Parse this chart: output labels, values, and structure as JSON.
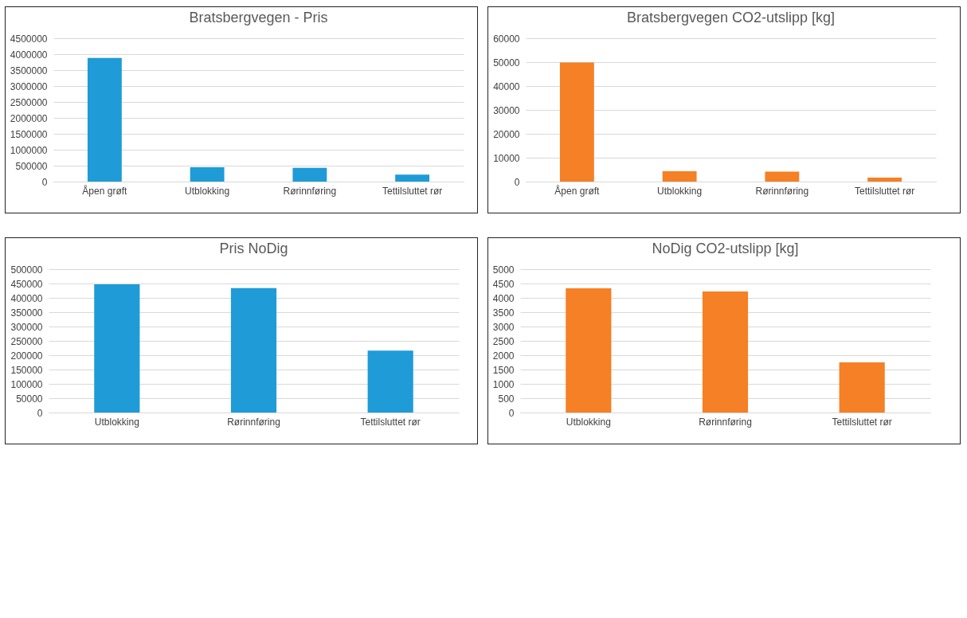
{
  "chart_data": [
    {
      "type": "bar",
      "title": "Bratsbergvegen - Pris",
      "categories": [
        "Åpen grøft",
        "Utblokking",
        "Rørinnføring",
        "Tettilsluttet rør"
      ],
      "values": [
        3880000,
        450000,
        430000,
        220000
      ],
      "color": "#1f9bd7",
      "ylim": [
        0,
        4500000
      ],
      "yticks": [
        0,
        500000,
        1000000,
        1500000,
        2000000,
        2500000,
        3000000,
        3500000,
        4000000,
        4500000
      ],
      "grid": "y"
    },
    {
      "type": "bar",
      "title": "Bratsbergvegen CO2-utslipp [kg]",
      "categories": [
        "Åpen grøft",
        "Utblokking",
        "Rørinnføring",
        "Tettilsluttet rør"
      ],
      "values": [
        49800,
        4300,
        4200,
        1700
      ],
      "color": "#f58025",
      "ylim": [
        0,
        60000
      ],
      "yticks": [
        0,
        10000,
        20000,
        30000,
        40000,
        50000,
        60000
      ],
      "grid": "y"
    },
    {
      "type": "bar",
      "title": "Pris NoDig",
      "categories": [
        "Utblokking",
        "Rørinnføring",
        "Tettilsluttet rør"
      ],
      "values": [
        447000,
        434000,
        216000
      ],
      "color": "#1f9bd7",
      "ylim": [
        0,
        500000
      ],
      "yticks": [
        0,
        50000,
        100000,
        150000,
        200000,
        250000,
        300000,
        350000,
        400000,
        450000,
        500000
      ],
      "grid": "y"
    },
    {
      "type": "bar",
      "title": "NoDig CO2-utslipp [kg]",
      "categories": [
        "Utblokking",
        "Rørinnføring",
        "Tettilsluttet rør"
      ],
      "values": [
        4330,
        4220,
        1750
      ],
      "color": "#f58025",
      "ylim": [
        0,
        5000
      ],
      "yticks": [
        0,
        500,
        1000,
        1500,
        2000,
        2500,
        3000,
        3500,
        4000,
        4500,
        5000
      ],
      "grid": "y"
    }
  ]
}
